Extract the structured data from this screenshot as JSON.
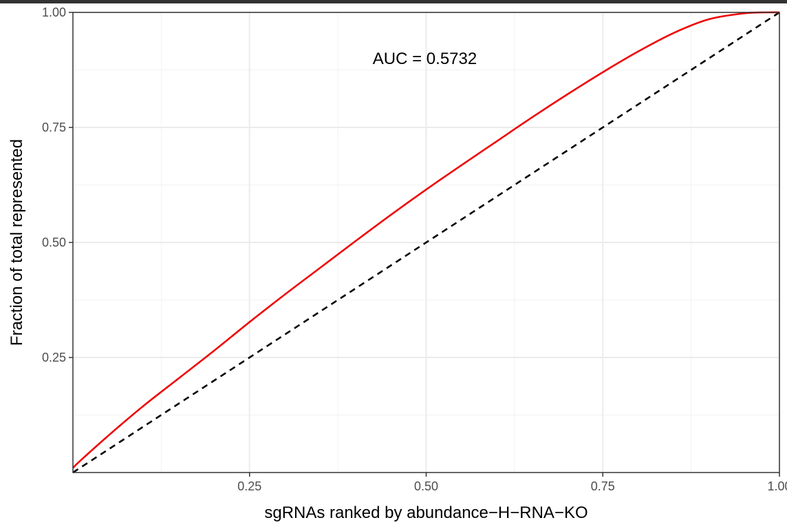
{
  "chart_data": {
    "type": "line",
    "title": "",
    "xlabel": "sgRNAs ranked by abundance−H−RNA−KO",
    "ylabel": "Fraction of total represented",
    "xlim": [
      0,
      1
    ],
    "ylim": [
      0,
      1
    ],
    "x_ticks": [
      {
        "value": 0.25,
        "label": "0.25"
      },
      {
        "value": 0.5,
        "label": "0.50"
      },
      {
        "value": 0.75,
        "label": "0.75"
      },
      {
        "value": 1.0,
        "label": "1.00"
      }
    ],
    "y_ticks": [
      {
        "value": 0.25,
        "label": "0.25"
      },
      {
        "value": 0.5,
        "label": "0.50"
      },
      {
        "value": 0.75,
        "label": "0.75"
      },
      {
        "value": 1.0,
        "label": "1.00"
      }
    ],
    "grid": true,
    "legend": "none",
    "annotation": {
      "text": "AUC = 0.5732",
      "x": 0.5,
      "y": 0.9
    },
    "series": [
      {
        "style": "solid",
        "color": "#ee0000",
        "x": [
          0,
          0.01,
          0.05,
          0.1,
          0.15,
          0.2,
          0.25,
          0.3,
          0.35,
          0.4,
          0.45,
          0.5,
          0.55,
          0.6,
          0.65,
          0.7,
          0.75,
          0.8,
          0.85,
          0.9,
          0.95,
          0.98,
          1.0
        ],
        "y": [
          0.01,
          0.025,
          0.08,
          0.145,
          0.205,
          0.265,
          0.327,
          0.387,
          0.445,
          0.503,
          0.56,
          0.615,
          0.668,
          0.72,
          0.772,
          0.822,
          0.87,
          0.915,
          0.955,
          0.985,
          0.998,
          1.0,
          1.0
        ]
      },
      {
        "style": "dashed",
        "color": "#000000",
        "x": [
          0,
          1
        ],
        "y": [
          0,
          1
        ]
      }
    ]
  }
}
